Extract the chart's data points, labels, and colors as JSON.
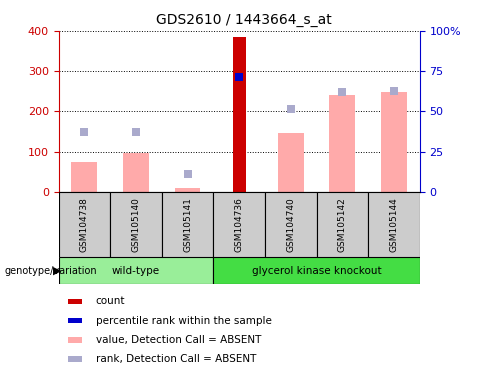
{
  "title": "GDS2610 / 1443664_s_at",
  "samples": [
    "GSM104738",
    "GSM105140",
    "GSM105141",
    "GSM104736",
    "GSM104740",
    "GSM105142",
    "GSM105144"
  ],
  "bar_values": {
    "GSM104738": {
      "pink_bar": 75,
      "blue_square": 37.5,
      "red_bar": null,
      "blue_dot": null
    },
    "GSM105140": {
      "pink_bar": 97,
      "blue_square": 37.5,
      "red_bar": null,
      "blue_dot": null
    },
    "GSM105141": {
      "pink_bar": 10,
      "blue_square": 11.25,
      "red_bar": null,
      "blue_dot": null
    },
    "GSM104736": {
      "pink_bar": null,
      "blue_square": null,
      "red_bar": 385,
      "blue_dot": 71.25
    },
    "GSM104740": {
      "pink_bar": 147,
      "blue_square": 51.75,
      "red_bar": null,
      "blue_dot": null
    },
    "GSM105142": {
      "pink_bar": 240,
      "blue_square": 61.75,
      "red_bar": null,
      "blue_dot": null
    },
    "GSM105144": {
      "pink_bar": 248,
      "blue_square": 62.5,
      "red_bar": null,
      "blue_dot": null
    }
  },
  "ylim_left": [
    0,
    400
  ],
  "ylim_right": [
    0,
    100
  ],
  "yticks_left": [
    0,
    100,
    200,
    300,
    400
  ],
  "ytick_labels_left": [
    "0",
    "100",
    "200",
    "300",
    "400"
  ],
  "yticks_right": [
    0,
    25,
    50,
    75,
    100
  ],
  "ytick_labels_right": [
    "0",
    "25",
    "50",
    "75",
    "100%"
  ],
  "pink_bar_color": "#ffaaaa",
  "blue_square_color": "#aaaacc",
  "red_bar_color": "#cc0000",
  "blue_dot_color": "#0000cc",
  "left_axis_color": "#cc0000",
  "right_axis_color": "#0000cc",
  "wt_color": "#99ee99",
  "gk_color": "#44dd44",
  "gray_color": "#cccccc",
  "legend_items": [
    {
      "label": "count",
      "color": "#cc0000"
    },
    {
      "label": "percentile rank within the sample",
      "color": "#0000cc"
    },
    {
      "label": "value, Detection Call = ABSENT",
      "color": "#ffaaaa"
    },
    {
      "label": "rank, Detection Call = ABSENT",
      "color": "#aaaacc"
    }
  ]
}
